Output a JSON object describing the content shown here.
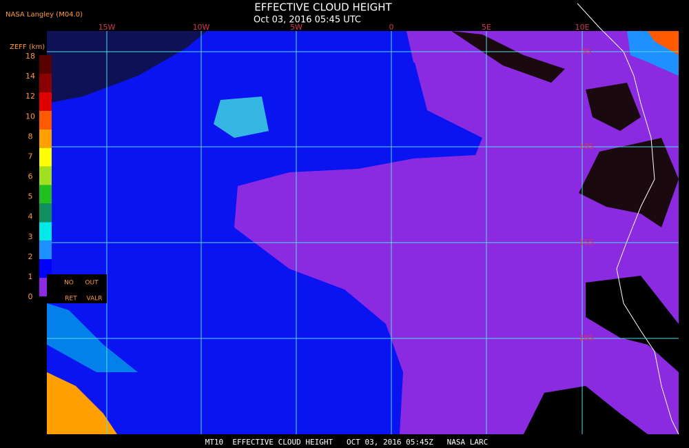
{
  "header": {
    "source": "NASA Langley (M04.0)",
    "title": "EFFECTIVE CLOUD HEIGHT",
    "subtitle": "Oct 03, 2016 05:45 UTC"
  },
  "colorbar": {
    "unit": "ZEFF (km)",
    "labels": [
      "18",
      "14",
      "12",
      "10",
      "8",
      "7",
      "6",
      "5",
      "4",
      "3",
      "2",
      "1",
      "0"
    ],
    "colors": [
      "#5a0000",
      "#8b0000",
      "#e00000",
      "#ff5a00",
      "#ffa000",
      "#ffff00",
      "#a0e020",
      "#20c020",
      "#109060",
      "#00e8e8",
      "#1e90ff",
      "#0000ff",
      "#8a2be2"
    ]
  },
  "legend": {
    "row1": [
      "NO",
      "OUT"
    ],
    "row2": [
      "RET",
      "VALR"
    ]
  },
  "map": {
    "lon_labels": [
      "15W",
      "10W",
      "5W",
      "0",
      "5E",
      "10E"
    ],
    "lat_labels": [
      "5S",
      "10S",
      "15S",
      "20S"
    ]
  },
  "footer": "MT10  EFFECTIVE CLOUD HEIGHT   OCT 03, 2016 05:45Z   NASA LARC"
}
